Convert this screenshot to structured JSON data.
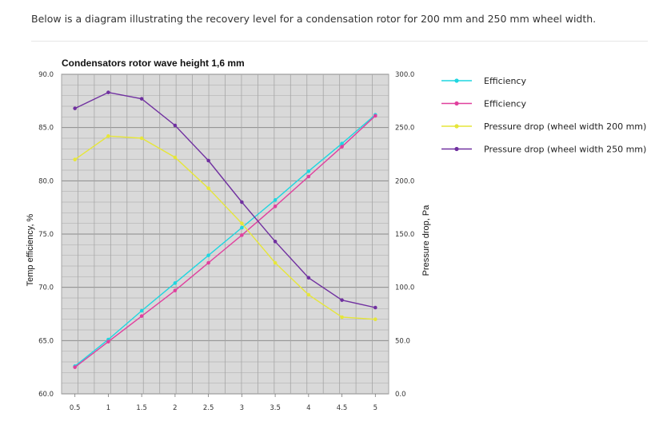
{
  "intro_text": "Below is a diagram illustrating the recovery level for a condensation rotor for 200 mm and 250 mm wheel width.",
  "chart_data": {
    "type": "line",
    "title": "Condensators rotor wave height 1,6 mm",
    "x": [
      0.5,
      1,
      1.5,
      2,
      2.5,
      3,
      3.5,
      4,
      4.5,
      5
    ],
    "x_tick_labels": [
      "0.5",
      "1",
      "1.5",
      "2",
      "2.5",
      "3",
      "3.5",
      "4",
      "4.5",
      "5"
    ],
    "ylabel_left": "Temp efficiency, %",
    "ylabel_right": "Pressure drop, Pa",
    "ylim_left": [
      60,
      90
    ],
    "ylim_right": [
      0,
      300
    ],
    "y_left_ticks": [
      "60.0",
      "65.0",
      "70.0",
      "75.0",
      "80.0",
      "85.0",
      "90.0"
    ],
    "y_right_ticks": [
      "0.0",
      "50.0",
      "100.0",
      "150.0",
      "200.0",
      "250.0",
      "300.0"
    ],
    "grid": true,
    "legend_position": "right",
    "plot_background": "#d9d9d9",
    "series": [
      {
        "name": "Efficiency",
        "axis": "left",
        "color": "#1fd6e0",
        "values": [
          62.6,
          65.1,
          67.8,
          70.4,
          73.0,
          75.6,
          78.2,
          80.9,
          83.5,
          86.2
        ]
      },
      {
        "name": "Efficiency",
        "axis": "left",
        "color": "#e0409e",
        "values": [
          62.5,
          64.9,
          67.3,
          69.7,
          72.3,
          74.9,
          77.6,
          80.4,
          83.2,
          86.1
        ]
      },
      {
        "name": "Pressure drop (wheel width 200 mm)",
        "axis": "right",
        "color": "#e6e63a",
        "values": [
          220,
          242,
          240,
          222,
          193,
          160,
          123,
          93,
          72,
          70
        ]
      },
      {
        "name": "Pressure drop (wheel width 250 mm)",
        "axis": "right",
        "color": "#7030a0",
        "values": [
          268,
          283,
          277,
          252,
          219,
          180,
          143,
          109,
          88,
          81
        ]
      }
    ]
  }
}
